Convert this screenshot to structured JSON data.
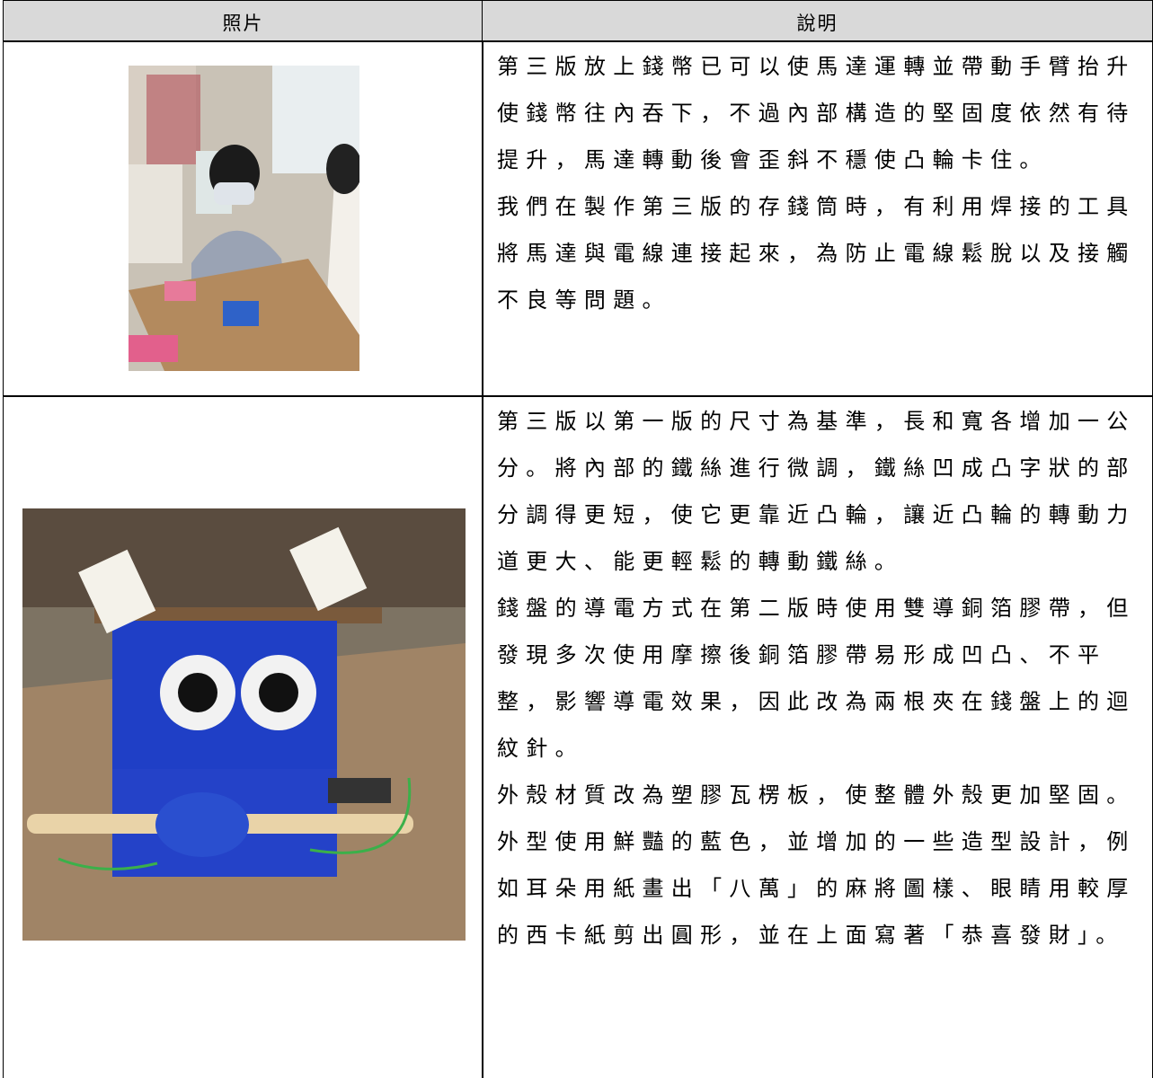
{
  "table": {
    "header": [
      "照片",
      "說明"
    ],
    "rows": [
      {
        "paragraphs": [
          [
            "第三版放上錢幣已可以使馬達運轉並帶動手臂抬升",
            "使錢幣往內吞下，不過內部構造的堅固度依然有待",
            "提升，馬達轉動後會歪斜不穩使凸輪卡住。"
          ],
          [
            "我們在製作第三版的存錢筒時，有利用焊接的工具",
            "將馬達與電線連接起來，為防止電線鬆脫以及接觸",
            "不良等問題。"
          ]
        ]
      },
      {
        "paragraphs": [
          [
            "第三版以第一版的尺寸為基準，長和寬各增加一公",
            "分。將內部的鐵絲進行微調，鐵絲凹成凸字狀的部",
            "分調得更短，使它更靠近凸輪，讓近凸輪的轉動力",
            "道更大、能更輕鬆的轉動鐵絲。"
          ],
          [
            "錢盤的導電方式在第二版時使用雙導銅箔膠帶，但",
            "發現多次使用摩擦後銅箔膠帶易形成凹凸、不平",
            "整，影響導電效果，因此改為兩根夾在錢盤上的迴",
            "紋針。"
          ],
          [
            "外殼材質改為塑膠瓦楞板，使整體外殼更加堅固。",
            "外型使用鮮豔的藍色，並增加的一些造型設計，例",
            "如耳朵用紙畫出「八萬」的麻將圖樣、眼睛用較厚",
            "的西卡紙剪出圓形，並在上面寫著「恭喜發財」。"
          ]
        ]
      }
    ]
  }
}
